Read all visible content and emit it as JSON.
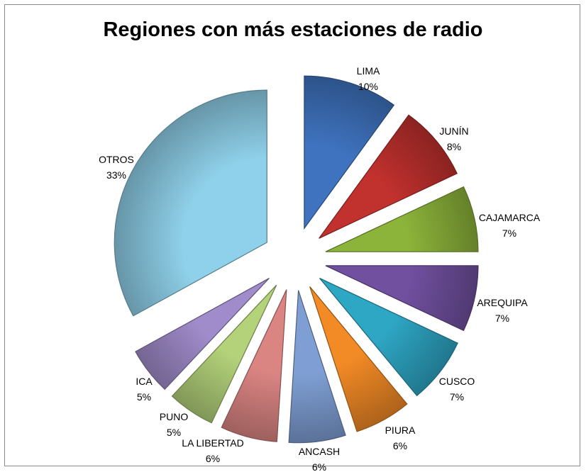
{
  "chart_data": {
    "type": "pie",
    "title": "Regiones con más estaciones de radio",
    "legend": "none",
    "slices": [
      {
        "label": "LIMA",
        "value": 10,
        "pct_label": "10%",
        "color": "#3f73bf"
      },
      {
        "label": "JUNÍN",
        "value": 8,
        "pct_label": "8%",
        "color": "#c1312e"
      },
      {
        "label": "CAJAMARCA",
        "value": 7,
        "pct_label": "7%",
        "color": "#8cb33a"
      },
      {
        "label": "AREQUIPA",
        "value": 7,
        "pct_label": "7%",
        "color": "#7150a0"
      },
      {
        "label": "CUSCO",
        "value": 7,
        "pct_label": "7%",
        "color": "#2ea7c5"
      },
      {
        "label": "PIURA",
        "value": 6,
        "pct_label": "6%",
        "color": "#f28a26"
      },
      {
        "label": "ANCASH",
        "value": 6,
        "pct_label": "6%",
        "color": "#7f9fd4"
      },
      {
        "label": "LA LIBERTAD",
        "value": 6,
        "pct_label": "6%",
        "color": "#db8583"
      },
      {
        "label": "PUNO",
        "value": 5,
        "pct_label": "5%",
        "color": "#b3d27a"
      },
      {
        "label": "ICA",
        "value": 5,
        "pct_label": "5%",
        "color": "#a18ccb"
      },
      {
        "label": "OTROS",
        "value": 33,
        "pct_label": "33%",
        "color": "#8fd1ea"
      }
    ]
  }
}
